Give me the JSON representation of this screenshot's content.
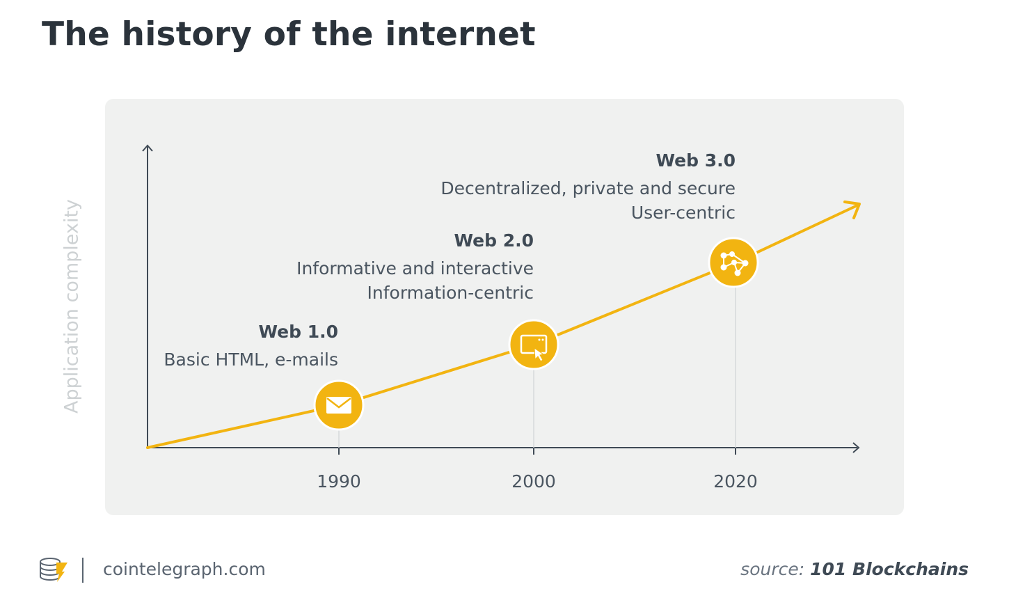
{
  "title": "The history of the internet",
  "y_axis_label": "Application complexity",
  "accent_color": "#f2b411",
  "eras": [
    {
      "name": "Web 1.0",
      "lines": [
        "Basic HTML, e-mails"
      ],
      "year": "1990",
      "icon": "envelope-icon"
    },
    {
      "name": "Web 2.0",
      "lines": [
        "Informative and interactive",
        "Information-centric"
      ],
      "year": "2000",
      "icon": "browser-cursor-icon"
    },
    {
      "name": "Web 3.0",
      "lines": [
        "Decentralized, private and secure",
        "User-centric"
      ],
      "year": "2020",
      "icon": "network-nodes-icon"
    }
  ],
  "footer": {
    "site": "cointelegraph.com",
    "logo_icon": "cointelegraph-logo-icon",
    "source_prefix": "source:",
    "source_name": "101 Blockchains"
  }
}
